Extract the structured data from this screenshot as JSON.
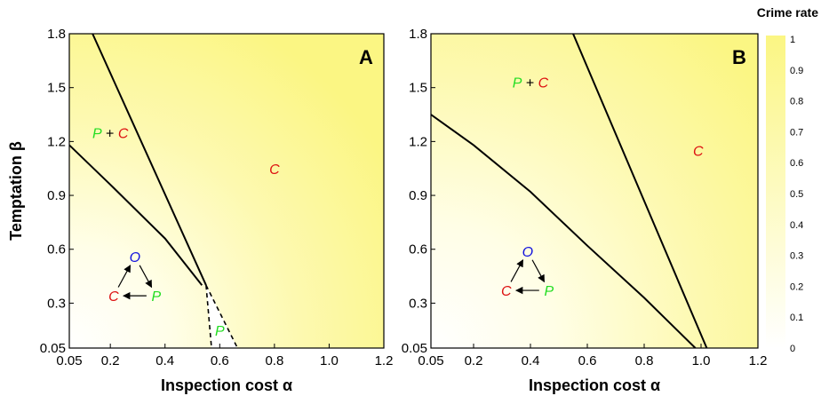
{
  "colors": {
    "crime_yellow": "#fbf683",
    "zero_white": "#ffffff",
    "label_P": "#22dd22",
    "label_C": "#dd1111",
    "label_O": "#1010dd"
  },
  "colorbar": {
    "title": "Crime rate",
    "ticks": [
      "1",
      "0.9",
      "0.8",
      "0.7",
      "0.6",
      "0.5",
      "0.4",
      "0.3",
      "0.2",
      "0.1",
      "0"
    ]
  },
  "chart_data": [
    {
      "type": "heatmap",
      "panel": "A",
      "xlabel": "Inspection cost α",
      "ylabel": "Temptation β",
      "xlim": [
        0.05,
        1.2
      ],
      "ylim": [
        0.05,
        1.8
      ],
      "xticks": [
        "0.05",
        "0.2",
        "0.4",
        "0.6",
        "0.8",
        "1.0",
        "1.2"
      ],
      "xtick_values": [
        0.05,
        0.2,
        0.4,
        0.6,
        0.8,
        1.0,
        1.2
      ],
      "yticks": [
        "0.05",
        "0.3",
        "0.6",
        "0.9",
        "1.2",
        "1.5",
        "1.8"
      ],
      "ytick_values": [
        0.05,
        0.3,
        0.6,
        0.9,
        1.2,
        1.5,
        1.8
      ],
      "boundaries": [
        {
          "style": "solid",
          "x": [
            0.05,
            0.2,
            0.4,
            0.535
          ],
          "y": [
            1.18,
            0.96,
            0.66,
            0.4
          ]
        },
        {
          "style": "solid",
          "x": [
            0.135,
            0.55
          ],
          "y": [
            1.8,
            0.4
          ]
        },
        {
          "style": "dashed",
          "x": [
            0.55,
            0.57
          ],
          "y": [
            0.4,
            0.05
          ]
        },
        {
          "style": "dashed",
          "x": [
            0.55,
            0.665
          ],
          "y": [
            0.4,
            0.05
          ]
        }
      ],
      "regions": [
        {
          "parts": [
            "P",
            " + ",
            "C"
          ],
          "x": 0.2,
          "y": 1.22
        },
        {
          "parts": [
            "C"
          ],
          "x": 0.8,
          "y": 1.02
        },
        {
          "parts": [
            "P"
          ],
          "x": 0.6,
          "y": 0.12
        }
      ],
      "cycle": {
        "labels": [
          "O",
          "P",
          "C"
        ],
        "cx": 0.29,
        "cy": 0.42
      }
    },
    {
      "type": "heatmap",
      "panel": "B",
      "xlabel": "Inspection cost α",
      "ylabel": "",
      "xlim": [
        0.05,
        1.2
      ],
      "ylim": [
        0.05,
        1.8
      ],
      "xticks": [
        "0.05",
        "0.2",
        "0.4",
        "0.6",
        "0.8",
        "1.0",
        "1.2"
      ],
      "xtick_values": [
        0.05,
        0.2,
        0.4,
        0.6,
        0.8,
        1.0,
        1.2
      ],
      "yticks": [
        "0.05",
        "0.3",
        "0.6",
        "0.9",
        "1.2",
        "1.5",
        "1.8"
      ],
      "ytick_values": [
        0.05,
        0.3,
        0.6,
        0.9,
        1.2,
        1.5,
        1.8
      ],
      "boundaries": [
        {
          "style": "solid",
          "x": [
            0.05,
            0.2,
            0.4,
            0.6,
            0.8,
            0.98
          ],
          "y": [
            1.35,
            1.18,
            0.92,
            0.62,
            0.33,
            0.05
          ]
        },
        {
          "style": "solid",
          "x": [
            0.55,
            1.02
          ],
          "y": [
            1.8,
            0.05
          ]
        }
      ],
      "regions": [
        {
          "parts": [
            "P",
            " + ",
            "C"
          ],
          "x": 0.4,
          "y": 1.5
        },
        {
          "parts": [
            "C"
          ],
          "x": 0.99,
          "y": 1.12
        }
      ],
      "cycle": {
        "labels": [
          "O",
          "P",
          "C"
        ],
        "cx": 0.39,
        "cy": 0.45
      }
    }
  ]
}
